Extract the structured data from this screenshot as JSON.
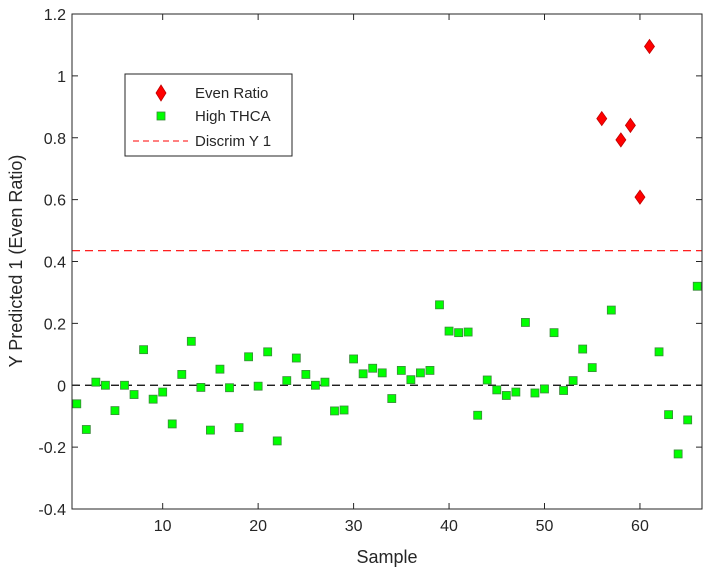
{
  "chart_data": {
    "type": "scatter",
    "title": "",
    "xlabel": "Sample",
    "ylabel": "Y Predicted 1 (Even Ratio)",
    "xlim": [
      0.5,
      66.5
    ],
    "ylim": [
      -0.4,
      1.2
    ],
    "xticks": [
      10,
      20,
      30,
      40,
      50,
      60
    ],
    "xtick_labels": [
      "10",
      "20",
      "30",
      "40",
      "50",
      "60"
    ],
    "yticks": [
      -0.4,
      -0.2,
      0,
      0.2,
      0.4,
      0.6,
      0.8,
      1,
      1.2
    ],
    "ytick_labels": [
      "-0.4",
      "-0.2",
      "0",
      "0.2",
      "0.4",
      "0.6",
      "0.8",
      "1",
      "1.2"
    ],
    "grid": false,
    "legend_position": "top-left",
    "series": [
      {
        "name": "Even Ratio",
        "marker": "diamond",
        "color": "#ff0000",
        "x": [
          56,
          58,
          59,
          60,
          61
        ],
        "y": [
          0.862,
          0.793,
          0.84,
          0.608,
          1.095
        ]
      },
      {
        "name": "High THCA",
        "marker": "square",
        "color": "#00ff00",
        "x": [
          1,
          2,
          3,
          4,
          5,
          6,
          7,
          8,
          9,
          10,
          11,
          12,
          13,
          14,
          15,
          16,
          17,
          18,
          19,
          20,
          21,
          22,
          23,
          24,
          25,
          26,
          27,
          28,
          29,
          30,
          31,
          32,
          33,
          34,
          35,
          36,
          37,
          38,
          39,
          40,
          41,
          42,
          43,
          44,
          45,
          46,
          47,
          48,
          49,
          50,
          51,
          52,
          53,
          54,
          55,
          57,
          62,
          63,
          64,
          65,
          66
        ],
        "y": [
          -0.06,
          -0.143,
          0.01,
          0.0,
          -0.082,
          0.0,
          -0.03,
          0.115,
          -0.045,
          -0.022,
          -0.125,
          0.035,
          0.142,
          -0.007,
          -0.145,
          0.052,
          -0.008,
          -0.137,
          0.092,
          -0.003,
          0.108,
          -0.18,
          0.015,
          0.088,
          0.035,
          0.0,
          0.01,
          -0.083,
          -0.08,
          0.085,
          0.037,
          0.055,
          0.04,
          -0.043,
          0.048,
          0.018,
          0.04,
          0.048,
          0.26,
          0.175,
          0.17,
          0.172,
          -0.097,
          0.017,
          -0.015,
          -0.033,
          -0.022,
          0.203,
          -0.025,
          -0.012,
          0.17,
          -0.017,
          0.015,
          0.117,
          0.057,
          0.243,
          0.108,
          -0.095,
          -0.222,
          -0.112,
          0.32
        ]
      },
      {
        "name": "Discrim Y 1",
        "type": "hline",
        "style": "dashed",
        "color": "#ff0000",
        "y": 0.435
      },
      {
        "name": "",
        "type": "hline",
        "style": "dashed",
        "color": "#000000",
        "y": 0
      }
    ],
    "legend": [
      "Even Ratio",
      "High THCA",
      "Discrim Y 1"
    ]
  }
}
